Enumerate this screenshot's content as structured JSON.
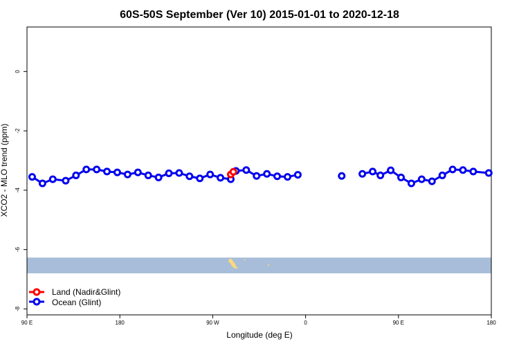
{
  "chart_data": {
    "type": "line",
    "title": "60S-50S September (Ver 10)   2015-01-01 to 2020-12-18",
    "xlabel": "Longitude (deg E)",
    "ylabel": "XCO2 - MLO trend (ppm)",
    "xlim": [
      90,
      540
    ],
    "ylim": [
      -8.2,
      1.5
    ],
    "x_ticks": [
      {
        "value": 90,
        "label": "90 E"
      },
      {
        "value": 180,
        "label": "180"
      },
      {
        "value": 270,
        "label": "90 W"
      },
      {
        "value": 360,
        "label": "0"
      },
      {
        "value": 450,
        "label": "90 E"
      },
      {
        "value": 540,
        "label": "180"
      }
    ],
    "y_ticks": [
      {
        "value": 0,
        "label": "0"
      },
      {
        "value": -2,
        "label": "-2"
      },
      {
        "value": -4,
        "label": "-4"
      },
      {
        "value": -6,
        "label": "-6"
      },
      {
        "value": -8,
        "label": "-8"
      }
    ],
    "grid": false,
    "legend_position": "bottom-left",
    "series": [
      {
        "name": "Land (Nadir&Glint)",
        "color": "#ff0000",
        "x": [
          287.5,
          290
        ],
        "y": [
          -3.47,
          -3.38
        ]
      },
      {
        "name": "Ocean (Glint)",
        "color": "#0000ee",
        "segments": [
          {
            "x": [
              95,
              105,
              115,
              127.5,
              137.5,
              147.5,
              157.5,
              167.5,
              177.5,
              187.5,
              197.5,
              207.5,
              217.5,
              227.5,
              237.5,
              247.5,
              257.5,
              267.5,
              277.5,
              287.5,
              292.5,
              302.5,
              312.5,
              322.5,
              332.5,
              342.5,
              352.5
            ],
            "y": [
              -3.55,
              -3.77,
              -3.63,
              -3.68,
              -3.5,
              -3.3,
              -3.3,
              -3.37,
              -3.4,
              -3.47,
              -3.4,
              -3.5,
              -3.57,
              -3.43,
              -3.42,
              -3.53,
              -3.6,
              -3.47,
              -3.58,
              -3.63,
              -3.35,
              -3.32,
              -3.52,
              -3.45,
              -3.53,
              -3.55,
              -3.48
            ]
          },
          {
            "x": [
              395
            ],
            "y": [
              -3.52
            ]
          },
          {
            "x": [
              415,
              425,
              432.5,
              442.5,
              452.5,
              462.5,
              472.5,
              482.5,
              492.5,
              502.5,
              512.5,
              522.5,
              537.5
            ],
            "y": [
              -3.45,
              -3.37,
              -3.5,
              -3.33,
              -3.57,
              -3.77,
              -3.63,
              -3.7,
              -3.5,
              -3.3,
              -3.32,
              -3.37,
              -3.42
            ]
          }
        ]
      }
    ],
    "map_strip": {
      "y_range": [
        -6.8,
        -6.27
      ],
      "color": "#a7bdd9",
      "land_color": "#fcd97a"
    }
  }
}
